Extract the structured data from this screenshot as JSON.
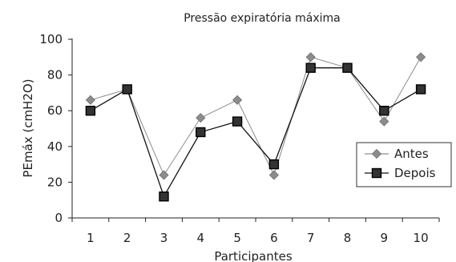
{
  "chart_data": {
    "type": "line",
    "title": "Pressão expiratória máxima",
    "xlabel": "Participantes",
    "ylabel": "PEmáx (cmH2O)",
    "categories": [
      "1",
      "2",
      "3",
      "4",
      "5",
      "6",
      "7",
      "8",
      "9",
      "10"
    ],
    "ylim": [
      0,
      100
    ],
    "yticks": [
      "0",
      "20",
      "40",
      "60",
      "80",
      "100"
    ],
    "grid": false,
    "legend_position": "right",
    "series": [
      {
        "name": "Antes",
        "marker": "diamond",
        "color": "#8c8c8c",
        "values": [
          66,
          72,
          24,
          56,
          66,
          24,
          90,
          84,
          54,
          90
        ]
      },
      {
        "name": "Depois",
        "marker": "square",
        "color": "#111111",
        "values": [
          60,
          72,
          12,
          48,
          54,
          30,
          84,
          84,
          60,
          72
        ]
      }
    ]
  }
}
